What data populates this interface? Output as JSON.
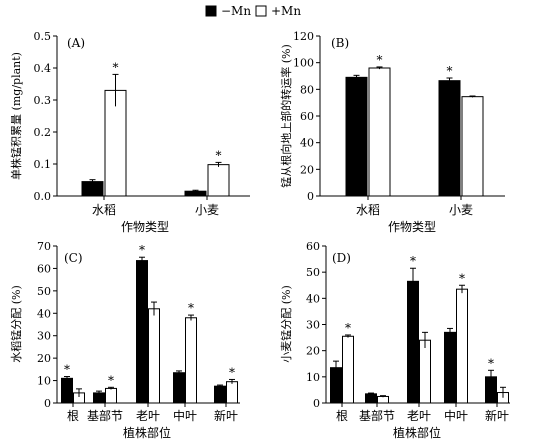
{
  "legend": {
    "items": [
      {
        "label": "−Mn",
        "color": "#000000"
      },
      {
        "label": "+Mn",
        "color": "#ffffff"
      }
    ]
  },
  "chart_data": [
    {
      "panel": "(A)",
      "type": "bar",
      "ylabel": "单株锰积累量 (mg/plant)",
      "xlabel": "作物类型",
      "categories": [
        "水稻",
        "小麦"
      ],
      "ylim": [
        0,
        0.5
      ],
      "yticks": [
        0.0,
        0.1,
        0.2,
        0.3,
        0.4,
        0.5
      ],
      "ytick_labels": [
        "0.0",
        "0.1",
        "0.2",
        "0.3",
        "0.4",
        "0.5"
      ],
      "series": [
        {
          "name": "−Mn",
          "values": [
            0.045,
            0.015
          ],
          "errors": [
            0.006,
            0.003
          ],
          "sig": [
            "",
            ""
          ]
        },
        {
          "name": "+Mn",
          "values": [
            0.33,
            0.098
          ],
          "errors": [
            0.05,
            0.007
          ],
          "sig": [
            "*",
            "*"
          ]
        }
      ]
    },
    {
      "panel": "(B)",
      "type": "bar",
      "ylabel": "锰从根向地上部的转运率 (%)",
      "xlabel": "作物类型",
      "categories": [
        "水稻",
        "小麦"
      ],
      "ylim": [
        0,
        120
      ],
      "yticks": [
        0,
        20,
        40,
        60,
        80,
        100,
        120
      ],
      "ytick_labels": [
        "0",
        "20",
        "40",
        "60",
        "80",
        "100",
        "120"
      ],
      "series": [
        {
          "name": "−Mn",
          "values": [
            89,
            86.5
          ],
          "errors": [
            1.5,
            2
          ],
          "sig": [
            "",
            "*"
          ]
        },
        {
          "name": "+Mn",
          "values": [
            96,
            74.5
          ],
          "errors": [
            0.8,
            0.5
          ],
          "sig": [
            "*",
            ""
          ]
        }
      ]
    },
    {
      "panel": "(C)",
      "type": "bar",
      "ylabel": "水稻锰分配 (%)",
      "xlabel": "植株部位",
      "categories": [
        "根",
        "基部节",
        "老叶",
        "中叶",
        "新叶"
      ],
      "ylim": [
        0,
        70
      ],
      "yticks": [
        0,
        10,
        20,
        30,
        40,
        50,
        60,
        70
      ],
      "ytick_labels": [
        "0",
        "10",
        "20",
        "30",
        "40",
        "50",
        "60",
        "70"
      ],
      "series": [
        {
          "name": "−Mn",
          "values": [
            11,
            4.5,
            63.5,
            13.5,
            7.5
          ],
          "errors": [
            0.8,
            0.8,
            1.5,
            0.8,
            0.5
          ],
          "sig": [
            "*",
            "",
            "*",
            "",
            ""
          ]
        },
        {
          "name": "+Mn",
          "values": [
            4.5,
            6.5,
            42,
            38,
            9.5
          ],
          "errors": [
            1.8,
            0.5,
            3,
            1.2,
            1
          ],
          "sig": [
            "",
            "*",
            "",
            "*",
            "*"
          ]
        }
      ]
    },
    {
      "panel": "(D)",
      "type": "bar",
      "ylabel": "小麦锰分配 (%)",
      "xlabel": "植株部位",
      "categories": [
        "根",
        "基部节",
        "老叶",
        "中叶",
        "新叶"
      ],
      "ylim": [
        0,
        60
      ],
      "yticks": [
        0,
        10,
        20,
        30,
        40,
        50,
        60
      ],
      "ytick_labels": [
        "0",
        "10",
        "20",
        "30",
        "40",
        "50",
        "60"
      ],
      "series": [
        {
          "name": "−Mn",
          "values": [
            13.5,
            3.5,
            46.5,
            27,
            10
          ],
          "errors": [
            2.5,
            0.3,
            5,
            1.5,
            2.5
          ],
          "sig": [
            "",
            "",
            "*",
            "",
            "*"
          ]
        },
        {
          "name": "+Mn",
          "values": [
            25.5,
            2.5,
            24,
            43.5,
            4
          ],
          "errors": [
            0.5,
            0.3,
            3,
            1.5,
            2
          ],
          "sig": [
            "*",
            "",
            "",
            "*",
            ""
          ]
        }
      ]
    }
  ]
}
